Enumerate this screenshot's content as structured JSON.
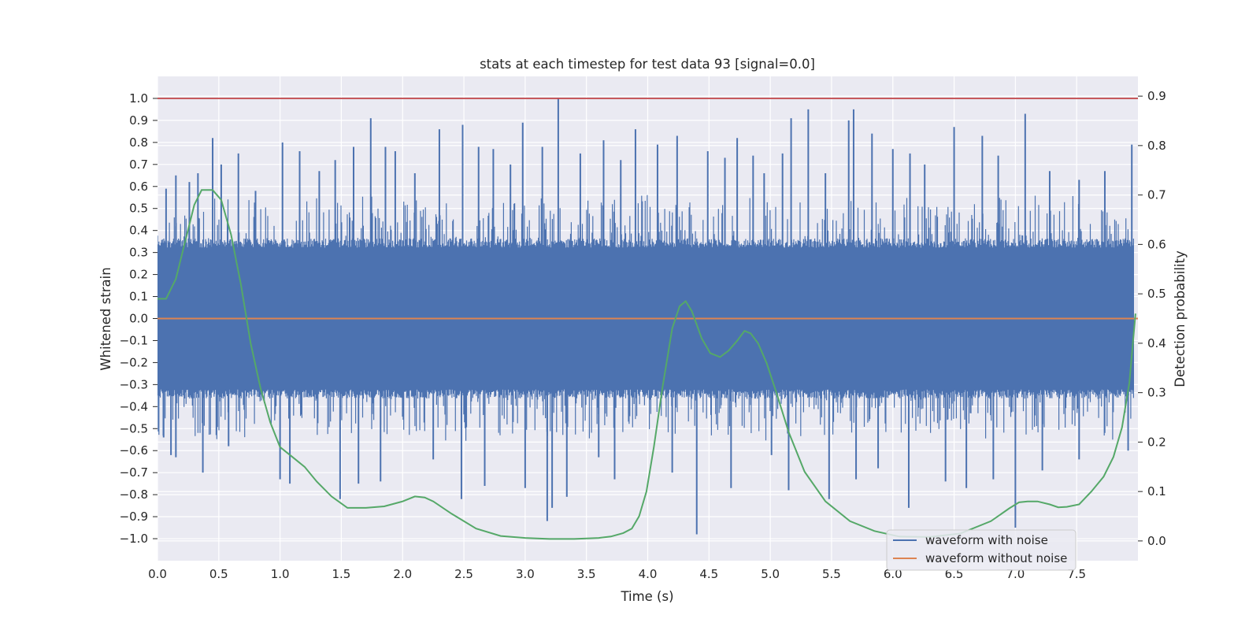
{
  "chart_data": {
    "type": "line",
    "title": "stats at each timestep for test data 93 [signal=0.0]",
    "xlabel": "Time (s)",
    "ylabel": "Whitened strain",
    "y2label": "Detection probability",
    "xlim": [
      0.0,
      8.0
    ],
    "ylim": [
      -1.1,
      1.1
    ],
    "y2lim": [
      -0.04,
      0.94
    ],
    "x_ticks": [
      "0.0",
      "0.5",
      "1.0",
      "1.5",
      "2.0",
      "2.5",
      "3.0",
      "3.5",
      "4.0",
      "4.5",
      "5.0",
      "5.5",
      "6.0",
      "6.5",
      "7.0",
      "7.5"
    ],
    "y_ticks": [
      "1.0",
      "0.9",
      "0.8",
      "0.7",
      "0.6",
      "0.5",
      "0.4",
      "0.3",
      "0.2",
      "0.1",
      "0.0",
      "−0.1",
      "−0.2",
      "−0.3",
      "−0.4",
      "−0.5",
      "−0.6",
      "−0.7",
      "−0.8",
      "−0.9",
      "−1.0"
    ],
    "y2_ticks": [
      "0.9",
      "0.8",
      "0.7",
      "0.6",
      "0.5",
      "0.4",
      "0.3",
      "0.2",
      "0.1",
      "0.0"
    ],
    "grid": true,
    "legend_position": "lower-right",
    "series": [
      {
        "name": "waveform with noise",
        "axis": "left",
        "color": "#4c72b0",
        "description": "dense noise, mostly within ±0.35, peaks near 1.0 at t≈3.27",
        "core_amplitude": 0.35,
        "spikes": [
          {
            "x": 0.07,
            "y": 0.59
          },
          {
            "x": 0.15,
            "y": 0.65
          },
          {
            "x": 0.26,
            "y": 0.62
          },
          {
            "x": 0.33,
            "y": 0.66
          },
          {
            "x": 0.45,
            "y": 0.82
          },
          {
            "x": 0.52,
            "y": 0.7
          },
          {
            "x": 0.66,
            "y": 0.75
          },
          {
            "x": 0.8,
            "y": 0.58
          },
          {
            "x": 1.02,
            "y": 0.8
          },
          {
            "x": 1.16,
            "y": 0.76
          },
          {
            "x": 1.32,
            "y": 0.67
          },
          {
            "x": 1.45,
            "y": 0.72
          },
          {
            "x": 1.6,
            "y": 0.78
          },
          {
            "x": 1.74,
            "y": 0.91
          },
          {
            "x": 1.86,
            "y": 0.78
          },
          {
            "x": 1.94,
            "y": 0.76
          },
          {
            "x": 2.1,
            "y": 0.66
          },
          {
            "x": 2.3,
            "y": 0.86
          },
          {
            "x": 2.49,
            "y": 0.88
          },
          {
            "x": 2.62,
            "y": 0.78
          },
          {
            "x": 2.74,
            "y": 0.77
          },
          {
            "x": 2.88,
            "y": 0.7
          },
          {
            "x": 2.98,
            "y": 0.89
          },
          {
            "x": 3.14,
            "y": 0.78
          },
          {
            "x": 3.27,
            "y": 1.0
          },
          {
            "x": 3.45,
            "y": 0.75
          },
          {
            "x": 3.64,
            "y": 0.81
          },
          {
            "x": 3.78,
            "y": 0.72
          },
          {
            "x": 3.9,
            "y": 0.86
          },
          {
            "x": 4.08,
            "y": 0.79
          },
          {
            "x": 4.24,
            "y": 0.83
          },
          {
            "x": 4.49,
            "y": 0.76
          },
          {
            "x": 4.63,
            "y": 0.73
          },
          {
            "x": 4.73,
            "y": 0.82
          },
          {
            "x": 4.86,
            "y": 0.74
          },
          {
            "x": 4.95,
            "y": 0.66
          },
          {
            "x": 5.1,
            "y": 0.75
          },
          {
            "x": 5.17,
            "y": 0.91
          },
          {
            "x": 5.31,
            "y": 0.95
          },
          {
            "x": 5.45,
            "y": 0.66
          },
          {
            "x": 5.64,
            "y": 0.9
          },
          {
            "x": 5.68,
            "y": 0.95
          },
          {
            "x": 5.83,
            "y": 0.84
          },
          {
            "x": 6.0,
            "y": 0.77
          },
          {
            "x": 6.14,
            "y": 0.75
          },
          {
            "x": 6.26,
            "y": 0.7
          },
          {
            "x": 6.5,
            "y": 0.87
          },
          {
            "x": 6.73,
            "y": 0.83
          },
          {
            "x": 6.86,
            "y": 0.74
          },
          {
            "x": 7.08,
            "y": 0.93
          },
          {
            "x": 7.28,
            "y": 0.67
          },
          {
            "x": 7.52,
            "y": 0.63
          },
          {
            "x": 7.73,
            "y": 0.67
          },
          {
            "x": 7.95,
            "y": 0.79
          },
          {
            "x": 0.05,
            "y": -0.54
          },
          {
            "x": 0.11,
            "y": -0.62
          },
          {
            "x": 0.15,
            "y": -0.63
          },
          {
            "x": 0.37,
            "y": -0.7
          },
          {
            "x": 0.58,
            "y": -0.58
          },
          {
            "x": 1.0,
            "y": -0.73
          },
          {
            "x": 1.08,
            "y": -0.75
          },
          {
            "x": 1.49,
            "y": -0.82
          },
          {
            "x": 1.64,
            "y": -0.75
          },
          {
            "x": 1.82,
            "y": -0.74
          },
          {
            "x": 2.25,
            "y": -0.64
          },
          {
            "x": 2.48,
            "y": -0.82
          },
          {
            "x": 2.67,
            "y": -0.76
          },
          {
            "x": 3.0,
            "y": -0.77
          },
          {
            "x": 3.18,
            "y": -0.92
          },
          {
            "x": 3.22,
            "y": -0.86
          },
          {
            "x": 3.34,
            "y": -0.81
          },
          {
            "x": 3.6,
            "y": -0.63
          },
          {
            "x": 3.73,
            "y": -0.73
          },
          {
            "x": 4.2,
            "y": -0.7
          },
          {
            "x": 4.4,
            "y": -0.98
          },
          {
            "x": 4.68,
            "y": -0.77
          },
          {
            "x": 5.01,
            "y": -0.62
          },
          {
            "x": 5.15,
            "y": -0.78
          },
          {
            "x": 5.48,
            "y": -0.82
          },
          {
            "x": 5.7,
            "y": -0.73
          },
          {
            "x": 5.88,
            "y": -0.68
          },
          {
            "x": 6.13,
            "y": -0.86
          },
          {
            "x": 6.43,
            "y": -0.74
          },
          {
            "x": 6.6,
            "y": -0.77
          },
          {
            "x": 6.82,
            "y": -0.73
          },
          {
            "x": 7.0,
            "y": -0.95
          },
          {
            "x": 7.22,
            "y": -0.69
          },
          {
            "x": 7.52,
            "y": -0.64
          },
          {
            "x": 7.92,
            "y": -0.6
          }
        ]
      },
      {
        "name": "waveform without noise",
        "axis": "left",
        "color": "#dd8452",
        "x": [
          0.0,
          8.0
        ],
        "y": [
          0.0,
          0.0
        ]
      },
      {
        "axis": "right",
        "color": "#55a868",
        "x": [
          0.0,
          0.07,
          0.15,
          0.22,
          0.3,
          0.36,
          0.45,
          0.52,
          0.6,
          0.68,
          0.76,
          0.84,
          0.92,
          1.0,
          1.1,
          1.2,
          1.3,
          1.42,
          1.55,
          1.7,
          1.85,
          2.0,
          2.1,
          2.18,
          2.25,
          2.4,
          2.6,
          2.8,
          3.0,
          3.2,
          3.4,
          3.6,
          3.7,
          3.8,
          3.87,
          3.93,
          3.99,
          4.05,
          4.12,
          4.2,
          4.26,
          4.31,
          4.36,
          4.44,
          4.51,
          4.59,
          4.66,
          4.73,
          4.79,
          4.84,
          4.9,
          4.97,
          5.05,
          5.15,
          5.28,
          5.45,
          5.65,
          5.85,
          6.05,
          6.3,
          6.55,
          6.8,
          6.95,
          7.03,
          7.1,
          7.18,
          7.28,
          7.35,
          7.42,
          7.52,
          7.62,
          7.72,
          7.8,
          7.87,
          7.93,
          7.98
        ],
        "y": [
          0.49,
          0.49,
          0.53,
          0.6,
          0.68,
          0.71,
          0.71,
          0.69,
          0.62,
          0.52,
          0.4,
          0.31,
          0.24,
          0.19,
          0.17,
          0.15,
          0.12,
          0.09,
          0.067,
          0.067,
          0.07,
          0.08,
          0.09,
          0.088,
          0.08,
          0.055,
          0.025,
          0.01,
          0.006,
          0.004,
          0.004,
          0.006,
          0.009,
          0.016,
          0.025,
          0.05,
          0.1,
          0.19,
          0.31,
          0.43,
          0.475,
          0.485,
          0.465,
          0.41,
          0.38,
          0.372,
          0.385,
          0.405,
          0.425,
          0.42,
          0.4,
          0.36,
          0.3,
          0.22,
          0.14,
          0.08,
          0.04,
          0.02,
          0.009,
          0.008,
          0.015,
          0.04,
          0.066,
          0.078,
          0.08,
          0.08,
          0.074,
          0.068,
          0.069,
          0.074,
          0.1,
          0.13,
          0.17,
          0.23,
          0.32,
          0.46
        ]
      },
      {
        "axis": "left",
        "color": "#c44e52",
        "x": [
          0.0,
          8.0
        ],
        "y": [
          1.0,
          1.0
        ]
      }
    ]
  }
}
